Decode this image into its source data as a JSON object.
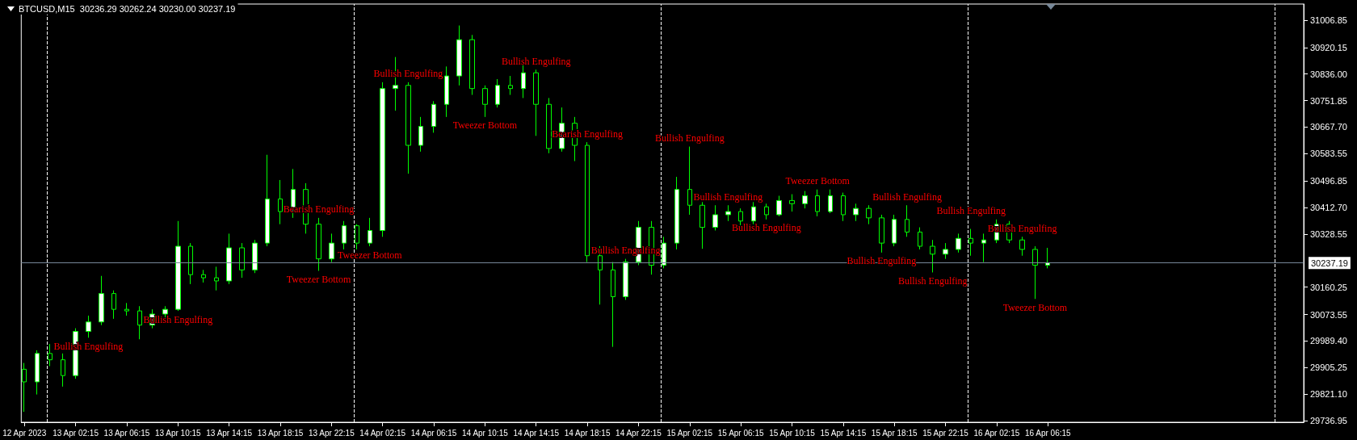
{
  "chart_data": {
    "type": "candlestick",
    "title": "BTCUSD,M15  30236.29 30262.24 30230.00 30237.19",
    "color": "#00ff00",
    "x": [
      "2023-04-12T22:15",
      "2023-04-12T23:15",
      "2023-04-13T00:15",
      "2023-04-13T01:15",
      "2023-04-13T02:15",
      "2023-04-13T03:15",
      "2023-04-13T04:15",
      "2023-04-13T05:15",
      "2023-04-13T06:15",
      "2023-04-13T07:15",
      "2023-04-13T08:15",
      "2023-04-13T09:15",
      "2023-04-13T10:15",
      "2023-04-13T11:15",
      "2023-04-13T12:15",
      "2023-04-13T13:15",
      "2023-04-13T14:15",
      "2023-04-13T15:15",
      "2023-04-13T16:15",
      "2023-04-13T17:15",
      "2023-04-13T18:15",
      "2023-04-13T19:15",
      "2023-04-13T20:15",
      "2023-04-13T21:15",
      "2023-04-13T22:15",
      "2023-04-13T23:15",
      "2023-04-14T00:15",
      "2023-04-14T01:15",
      "2023-04-14T02:15",
      "2023-04-14T03:15",
      "2023-04-14T04:15",
      "2023-04-14T05:15",
      "2023-04-14T06:15",
      "2023-04-14T07:15",
      "2023-04-14T08:15",
      "2023-04-14T09:15",
      "2023-04-14T10:15",
      "2023-04-14T11:15",
      "2023-04-14T12:15",
      "2023-04-14T13:15",
      "2023-04-14T14:15",
      "2023-04-14T15:15",
      "2023-04-14T16:15",
      "2023-04-14T17:15",
      "2023-04-14T18:15",
      "2023-04-14T19:15",
      "2023-04-14T20:15",
      "2023-04-14T21:15",
      "2023-04-14T22:15",
      "2023-04-14T23:15",
      "2023-04-15T00:15",
      "2023-04-15T01:15",
      "2023-04-15T02:15",
      "2023-04-15T03:15",
      "2023-04-15T04:15",
      "2023-04-15T05:15",
      "2023-04-15T06:15",
      "2023-04-15T07:15",
      "2023-04-15T08:15",
      "2023-04-15T09:15",
      "2023-04-15T10:15",
      "2023-04-15T11:15",
      "2023-04-15T12:15",
      "2023-04-15T13:15",
      "2023-04-15T14:15",
      "2023-04-15T15:15",
      "2023-04-15T16:15",
      "2023-04-15T17:15",
      "2023-04-15T18:15",
      "2023-04-15T19:15",
      "2023-04-15T20:15",
      "2023-04-15T21:15",
      "2023-04-15T22:15",
      "2023-04-15T23:15",
      "2023-04-16T00:15",
      "2023-04-16T01:15",
      "2023-04-16T02:15",
      "2023-04-16T03:15",
      "2023-04-16T04:15",
      "2023-04-16T05:15",
      "2023-04-16T06:15"
    ],
    "ohlc": [
      [
        29900,
        29920,
        29765,
        29860
      ],
      [
        29860,
        29960,
        29820,
        29950
      ],
      [
        29950,
        29980,
        29910,
        29930
      ],
      [
        29930,
        29950,
        29845,
        29880
      ],
      [
        29880,
        30030,
        29870,
        30020
      ],
      [
        30020,
        30070,
        30000,
        30050
      ],
      [
        30050,
        30196,
        30040,
        30140
      ],
      [
        30140,
        30150,
        30060,
        30090
      ],
      [
        30090,
        30110,
        30070,
        30085
      ],
      [
        30085,
        30100,
        29995,
        30040
      ],
      [
        30040,
        30090,
        30030,
        30075
      ],
      [
        30075,
        30100,
        30060,
        30090
      ],
      [
        30090,
        30370,
        30085,
        30290
      ],
      [
        30290,
        30300,
        30170,
        30200
      ],
      [
        30200,
        30215,
        30175,
        30190
      ],
      [
        30190,
        30225,
        30150,
        30180
      ],
      [
        30180,
        30330,
        30170,
        30285
      ],
      [
        30285,
        30300,
        30190,
        30215
      ],
      [
        30215,
        30310,
        30205,
        30300
      ],
      [
        30300,
        30580,
        30290,
        30440
      ],
      [
        30440,
        30500,
        30360,
        30400
      ],
      [
        30400,
        30535,
        30380,
        30470
      ],
      [
        30470,
        30490,
        30330,
        30360
      ],
      [
        30360,
        30380,
        30212,
        30250
      ],
      [
        30250,
        30330,
        30240,
        30300
      ],
      [
        30300,
        30370,
        30280,
        30355
      ],
      [
        30355,
        30360,
        30280,
        30300
      ],
      [
        30300,
        30380,
        30290,
        30340
      ],
      [
        30340,
        30810,
        30320,
        30790
      ],
      [
        30790,
        30890,
        30720,
        30800
      ],
      [
        30800,
        30810,
        30520,
        30610
      ],
      [
        30610,
        30700,
        30590,
        30670
      ],
      [
        30670,
        30750,
        30650,
        30740
      ],
      [
        30740,
        30860,
        30700,
        30830
      ],
      [
        30830,
        30990,
        30800,
        30945
      ],
      [
        30945,
        30960,
        30770,
        30790
      ],
      [
        30790,
        30800,
        30700,
        30740
      ],
      [
        30740,
        30820,
        30730,
        30800
      ],
      [
        30800,
        30830,
        30770,
        30790
      ],
      [
        30790,
        30870,
        30760,
        30840
      ],
      [
        30840,
        30850,
        30640,
        30740
      ],
      [
        30740,
        30760,
        30585,
        30600
      ],
      [
        30600,
        30730,
        30590,
        30680
      ],
      [
        30680,
        30700,
        30560,
        30610
      ],
      [
        30610,
        30620,
        30240,
        30260
      ],
      [
        30260,
        30290,
        30105,
        30215
      ],
      [
        30215,
        30240,
        29971,
        30130
      ],
      [
        30130,
        30250,
        30120,
        30240
      ],
      [
        30240,
        30370,
        30230,
        30350
      ],
      [
        30350,
        30370,
        30200,
        30230
      ],
      [
        30230,
        30320,
        30220,
        30300
      ],
      [
        30300,
        30510,
        30280,
        30470
      ],
      [
        30470,
        30606,
        30390,
        30420
      ],
      [
        30420,
        30430,
        30282,
        30350
      ],
      [
        30350,
        30420,
        30340,
        30390
      ],
      [
        30390,
        30420,
        30370,
        30400
      ],
      [
        30400,
        30410,
        30355,
        30370
      ],
      [
        30370,
        30430,
        30360,
        30415
      ],
      [
        30415,
        30425,
        30375,
        30390
      ],
      [
        30390,
        30450,
        30385,
        30435
      ],
      [
        30435,
        30455,
        30400,
        30425
      ],
      [
        30425,
        30465,
        30410,
        30450
      ],
      [
        30450,
        30470,
        30385,
        30400
      ],
      [
        30400,
        30470,
        30395,
        30450
      ],
      [
        30450,
        30460,
        30370,
        30390
      ],
      [
        30390,
        30425,
        30370,
        30410
      ],
      [
        30410,
        30420,
        30360,
        30380
      ],
      [
        30380,
        30390,
        30270,
        30300
      ],
      [
        30300,
        30390,
        30290,
        30375
      ],
      [
        30375,
        30420,
        30320,
        30335
      ],
      [
        30335,
        30350,
        30280,
        30290
      ],
      [
        30290,
        30310,
        30207,
        30265
      ],
      [
        30265,
        30300,
        30250,
        30280
      ],
      [
        30280,
        30330,
        30270,
        30315
      ],
      [
        30315,
        30345,
        30260,
        30300
      ],
      [
        30300,
        30330,
        30240,
        30310
      ],
      [
        30310,
        30375,
        30300,
        30360
      ],
      [
        30360,
        30370,
        30300,
        30310
      ],
      [
        30310,
        30320,
        30260,
        30280
      ],
      [
        30280,
        30290,
        30123,
        30230
      ],
      [
        30230,
        30285,
        30220,
        30237.19
      ]
    ],
    "xlim": [
      "2023-04-12T22:00",
      "2023-04-17T02:15"
    ],
    "xticks": [
      {
        "value": "2023-04-12T22:15",
        "label": "12 Apr 2023"
      },
      {
        "value": "2023-04-13T02:15",
        "label": "13 Apr 02:15"
      },
      {
        "value": "2023-04-13T06:15",
        "label": "13 Apr 06:15"
      },
      {
        "value": "2023-04-13T10:15",
        "label": "13 Apr 10:15"
      },
      {
        "value": "2023-04-13T14:15",
        "label": "13 Apr 14:15"
      },
      {
        "value": "2023-04-13T18:15",
        "label": "13 Apr 18:15"
      },
      {
        "value": "2023-04-13T22:15",
        "label": "13 Apr 22:15"
      },
      {
        "value": "2023-04-14T02:15",
        "label": "14 Apr 02:15"
      },
      {
        "value": "2023-04-14T06:15",
        "label": "14 Apr 06:15"
      },
      {
        "value": "2023-04-14T10:15",
        "label": "14 Apr 10:15"
      },
      {
        "value": "2023-04-14T14:15",
        "label": "14 Apr 14:15"
      },
      {
        "value": "2023-04-14T18:15",
        "label": "14 Apr 18:15"
      },
      {
        "value": "2023-04-14T22:15",
        "label": "14 Apr 22:15"
      },
      {
        "value": "2023-04-15T02:15",
        "label": "15 Apr 02:15"
      },
      {
        "value": "2023-04-15T06:15",
        "label": "15 Apr 06:15"
      },
      {
        "value": "2023-04-15T10:15",
        "label": "15 Apr 10:15"
      },
      {
        "value": "2023-04-15T14:15",
        "label": "15 Apr 14:15"
      },
      {
        "value": "2023-04-15T18:15",
        "label": "15 Apr 18:15"
      },
      {
        "value": "2023-04-15T22:15",
        "label": "15 Apr 22:15"
      },
      {
        "value": "2023-04-16T02:15",
        "label": "16 Apr 02:15"
      },
      {
        "value": "2023-04-16T06:15",
        "label": "16 Apr 06:15"
      }
    ],
    "ylim": [
      29732,
      31058
    ],
    "yticks": [
      {
        "value": 29736.95,
        "label": "29736.95"
      },
      {
        "value": 29821.1,
        "label": "29821.10"
      },
      {
        "value": 29905.25,
        "label": "29905.25"
      },
      {
        "value": 29989.4,
        "label": "29989.40"
      },
      {
        "value": 30073.55,
        "label": "30073.55"
      },
      {
        "value": 30160.25,
        "label": "30160.25"
      },
      {
        "value": 30328.55,
        "label": "30328.55"
      },
      {
        "value": 30412.7,
        "label": "30412.70"
      },
      {
        "value": 30496.85,
        "label": "30496.85"
      },
      {
        "value": 30583.55,
        "label": "30583.55"
      },
      {
        "value": 30667.7,
        "label": "30667.70"
      },
      {
        "value": 30751.85,
        "label": "30751.85"
      },
      {
        "value": 30836,
        "label": "30836.00"
      },
      {
        "value": 30920.15,
        "label": "30920.15"
      },
      {
        "value": 31006.85,
        "label": "31006.85"
      }
    ],
    "ref_lines": [
      {
        "axis": "x",
        "value": "2023-04-13T00:00",
        "color": "#ffffff",
        "line_style": "dashed"
      },
      {
        "axis": "x",
        "value": "2023-04-14T00:00",
        "color": "#ffffff",
        "line_style": "dashed"
      },
      {
        "axis": "x",
        "value": "2023-04-15T00:00",
        "color": "#ffffff",
        "line_style": "dashed"
      },
      {
        "axis": "x",
        "value": "2023-04-16T00:00",
        "color": "#ffffff",
        "line_style": "dashed"
      },
      {
        "axis": "x",
        "value": "2023-04-17T00:00",
        "color": "#ffffff",
        "line_style": "dashed"
      },
      {
        "axis": "y",
        "value": 30237.19,
        "label": "30237.19",
        "color": "#778899",
        "line_style": "solid"
      }
    ],
    "annotations": [
      {
        "text": "Bullish Engulfing",
        "x": "2023-04-13T03:15",
        "y": 30000
      },
      {
        "text": "Bullish Engulfing",
        "x": "2023-04-13T10:15",
        "y": 30085
      },
      {
        "text": "Tweezer Bottom",
        "x": "2023-04-13T21:15",
        "y": 30212
      },
      {
        "text": "Bearish Engulfing",
        "x": "2023-04-13T21:15",
        "y": 30380
      },
      {
        "text": "Tweezer Bottom",
        "x": "2023-04-14T01:15",
        "y": 30290
      },
      {
        "text": "Bullish Engulfing",
        "x": "2023-04-14T04:15",
        "y": 30810
      },
      {
        "text": "Tweezer Bottom",
        "x": "2023-04-14T10:15",
        "y": 30700
      },
      {
        "text": "Bullish Engulfing",
        "x": "2023-04-14T14:15",
        "y": 30850
      },
      {
        "text": "Bearish Engulfing",
        "x": "2023-04-14T18:15",
        "y": 30620
      },
      {
        "text": "Bullish Engulfing",
        "x": "2023-04-14T21:15",
        "y": 30250
      },
      {
        "text": "Bullish Engulfing",
        "x": "2023-04-15T02:15",
        "y": 30606
      },
      {
        "text": "Bullish Engulfing",
        "x": "2023-04-15T05:15",
        "y": 30420
      },
      {
        "text": "Bullish Engulfing",
        "x": "2023-04-15T08:15",
        "y": 30375
      },
      {
        "text": "Tweezer Bottom",
        "x": "2023-04-15T12:15",
        "y": 30470
      },
      {
        "text": "Bullish Engulfing",
        "x": "2023-04-15T19:15",
        "y": 30420
      },
      {
        "text": "Bullish Engulfing",
        "x": "2023-04-15T17:15",
        "y": 30270
      },
      {
        "text": "Bullish Engulfing",
        "x": "2023-04-16T00:15",
        "y": 30375
      },
      {
        "text": "Bullish Engulfing",
        "x": "2023-04-15T21:15",
        "y": 30207
      },
      {
        "text": "Bullish Engulfing",
        "x": "2023-04-16T04:15",
        "y": 30320
      },
      {
        "text": "Tweezer Bottom",
        "x": "2023-04-16T05:15",
        "y": 30123
      }
    ]
  }
}
